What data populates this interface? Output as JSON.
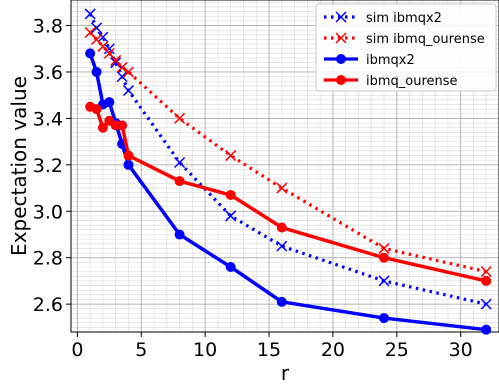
{
  "chart_data": {
    "type": "line",
    "xlabel": "r",
    "ylabel": "Expectation value",
    "xlim": [
      -0.5,
      33
    ],
    "ylim": [
      2.48,
      3.91
    ],
    "x_ticks": [
      0,
      5,
      10,
      15,
      20,
      25,
      30
    ],
    "y_ticks": [
      2.6,
      2.8,
      3.0,
      3.2,
      3.4,
      3.6,
      3.8
    ],
    "x_minor_step": 1,
    "y_minor_step": 0.02,
    "grid": true,
    "legend_position": "top-right",
    "series": [
      {
        "name": "sim ibmqx2",
        "color": "#0000ff",
        "line_style": "dotted",
        "marker": "x",
        "x": [
          1,
          1.5,
          2,
          2.5,
          3,
          3.5,
          4,
          8,
          12,
          16,
          24,
          32
        ],
        "y": [
          3.85,
          3.79,
          3.75,
          3.7,
          3.64,
          3.58,
          3.52,
          3.21,
          2.98,
          2.85,
          2.7,
          2.6
        ]
      },
      {
        "name": "sim ibmq_ourense",
        "color": "#ff0000",
        "line_style": "dotted",
        "marker": "x",
        "x": [
          1,
          1.5,
          2,
          2.5,
          3,
          3.5,
          4,
          8,
          12,
          16,
          24,
          32
        ],
        "y": [
          3.77,
          3.74,
          3.71,
          3.68,
          3.65,
          3.62,
          3.6,
          3.4,
          3.24,
          3.1,
          2.84,
          2.74
        ]
      },
      {
        "name": "ibmqx2",
        "color": "#0000ff",
        "line_style": "solid",
        "marker": "circle",
        "x": [
          1,
          1.5,
          2,
          2.5,
          3,
          3.5,
          4,
          8,
          12,
          16,
          24,
          32
        ],
        "y": [
          3.68,
          3.6,
          3.46,
          3.47,
          3.38,
          3.29,
          3.2,
          2.9,
          2.76,
          2.61,
          2.54,
          2.49
        ]
      },
      {
        "name": "ibmq_ourense",
        "color": "#ff0000",
        "line_style": "solid",
        "marker": "circle",
        "x": [
          1,
          1.5,
          2,
          2.5,
          3,
          3.5,
          4,
          8,
          12,
          16,
          24,
          32
        ],
        "y": [
          3.45,
          3.44,
          3.36,
          3.39,
          3.37,
          3.37,
          3.24,
          3.13,
          3.07,
          2.93,
          2.8,
          2.7
        ]
      }
    ]
  }
}
